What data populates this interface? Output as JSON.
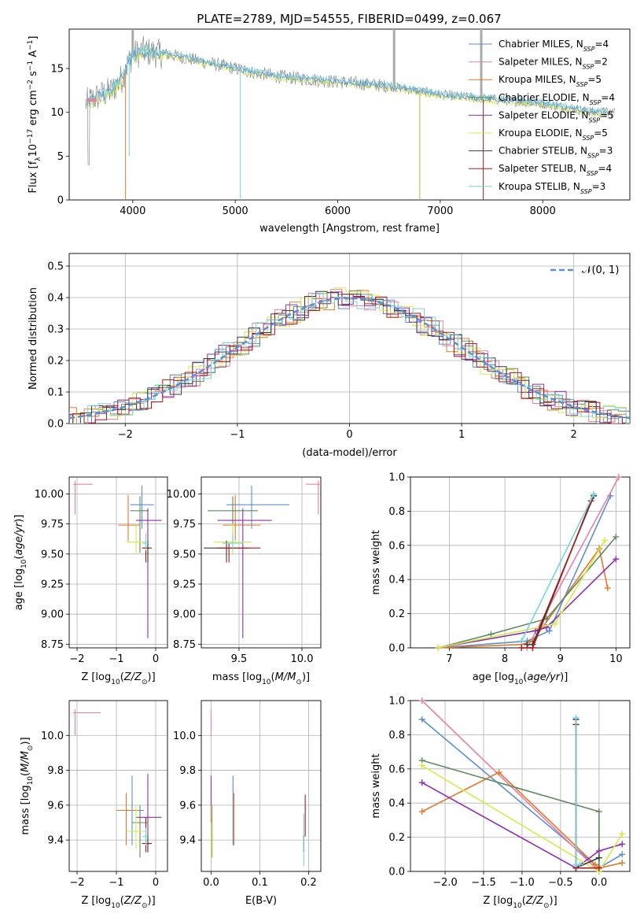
{
  "figure": {
    "title": "PLATE=2789, MJD=54555, FIBERID=0499, z=0.067"
  },
  "colors": {
    "Chabrier MILES": "#5b8fd4",
    "Salpeter MILES": "#e680a8",
    "Kroupa MILES": "#e2782a",
    "Chabrier ELODIE": "#5e8a60",
    "Salpeter ELODIE": "#8f2eb0",
    "Kroupa ELODIE": "#d6ea4a",
    "Chabrier STELIB": "#3a3a3a",
    "Salpeter STELIB": "#b01818",
    "Kroupa STELIB": "#74d3e0",
    "data": "#808080",
    "grid": "#b0b0b0"
  },
  "chart_data": [
    {
      "id": "spectrum",
      "type": "line",
      "title": "PLATE=2789, MJD=54555, FIBERID=0499, z=0.067",
      "xlabel": "wavelength [Angstrom, rest frame]",
      "ylabel": "Flux [f_λ 10^-17 erg cm^-2 s^-1 A^-1]",
      "xlim": [
        3380,
        8850
      ],
      "ylim": [
        0,
        19.5
      ],
      "xticks": [
        4000,
        5000,
        6000,
        7000,
        8000
      ],
      "yticks": [
        0,
        5,
        10,
        15
      ],
      "grid": false,
      "legend_position": "upper right",
      "legend": [
        {
          "name": "Chabrier MILES",
          "nssp": "4"
        },
        {
          "name": "Salpeter MILES",
          "nssp": "2"
        },
        {
          "name": "Kroupa MILES",
          "nssp": "5"
        },
        {
          "name": "Chabrier ELODIE",
          "nssp": "4"
        },
        {
          "name": "Salpeter ELODIE",
          "nssp": "5"
        },
        {
          "name": "Kroupa ELODIE",
          "nssp": "5"
        },
        {
          "name": "Chabrier STELIB",
          "nssp": "3"
        },
        {
          "name": "Salpeter STELIB",
          "nssp": "4"
        },
        {
          "name": "Kroupa STELIB",
          "nssp": "3"
        }
      ],
      "continuum": {
        "x": [
          3540,
          3600,
          3700,
          3800,
          3900,
          3950,
          4000,
          4100,
          4200,
          4400,
          4600,
          4800,
          5000,
          5200,
          5500,
          6000,
          6500,
          7000,
          7500,
          8000,
          8500
        ],
        "y": [
          11.0,
          11.5,
          12.0,
          12.5,
          14.0,
          15.5,
          16.5,
          17.0,
          16.8,
          16.5,
          16.0,
          15.5,
          15.0,
          14.5,
          14.0,
          13.5,
          13.0,
          12.0,
          11.5,
          11.0,
          10.0
        ]
      }
    },
    {
      "id": "residuals",
      "type": "histogram",
      "xlabel": "(data-model)/error",
      "ylabel": "Normed distribution",
      "xlim": [
        -2.5,
        2.5
      ],
      "ylim": [
        0,
        0.54
      ],
      "xticks": [
        -2,
        -1,
        0,
        1,
        2
      ],
      "yticks": [
        0.0,
        0.1,
        0.2,
        0.3,
        0.4,
        0.5
      ],
      "grid": true,
      "legend_position": "upper right",
      "reference_curve": {
        "name": "𝒩(0, 1)",
        "mean": 0,
        "sigma": 1,
        "style": "dashed"
      },
      "bin_width": 0.1
    },
    {
      "id": "age-vs-Z",
      "type": "errorbar",
      "xlabel": "Z [log10(Z/Z⊙)]",
      "ylabel": "age  [log10(age/yr)]",
      "xlim": [
        -2.2,
        0.3
      ],
      "ylim": [
        8.72,
        10.14
      ],
      "xticks": [
        -2,
        -1,
        0
      ],
      "yticks": [
        8.75,
        9.0,
        9.25,
        9.5,
        9.75,
        10.0
      ],
      "grid": true,
      "series": [
        {
          "name": "Chabrier MILES",
          "x": -0.35,
          "y": 9.91,
          "xerr": [
            0.3,
            0.3
          ],
          "yerr": [
            0.2,
            0.16
          ]
        },
        {
          "name": "Salpeter MILES",
          "x": -2.05,
          "y": 10.08,
          "xerr": [
            0.05,
            0.45
          ],
          "yerr": [
            0.25,
            0.03
          ]
        },
        {
          "name": "Kroupa MILES",
          "x": -0.7,
          "y": 9.74,
          "xerr": [
            0.25,
            0.3
          ],
          "yerr": [
            0.13,
            0.25
          ]
        },
        {
          "name": "Chabrier ELODIE",
          "x": -0.4,
          "y": 9.86,
          "xerr": [
            0.25,
            0.22
          ],
          "yerr": [
            0.35,
            0.12
          ]
        },
        {
          "name": "Salpeter ELODIE",
          "x": -0.2,
          "y": 9.78,
          "xerr": [
            0.3,
            0.35
          ],
          "yerr": [
            0.98,
            0.1
          ]
        },
        {
          "name": "Kroupa ELODIE",
          "x": -0.5,
          "y": 9.6,
          "xerr": [
            0.25,
            0.25
          ],
          "yerr": [
            0.1,
            0.15
          ]
        },
        {
          "name": "Chabrier STELIB",
          "x": -0.2,
          "y": 9.55,
          "xerr": [
            0.1,
            0.1
          ],
          "yerr": [
            0.12,
            0.06
          ]
        },
        {
          "name": "Salpeter STELIB",
          "x": -0.25,
          "y": 9.55,
          "xerr": [
            0.1,
            0.1
          ],
          "yerr": [
            0.12,
            0.04
          ]
        },
        {
          "name": "Kroupa STELIB",
          "x": -0.25,
          "y": 9.59,
          "xerr": [
            0.08,
            0.08
          ],
          "yerr": [
            0.06,
            0.08
          ]
        }
      ]
    },
    {
      "id": "age-vs-mass",
      "type": "errorbar",
      "xlabel": "mass [log10(M/M⊙)]",
      "ylabel": "",
      "xlim": [
        9.2,
        10.15
      ],
      "ylim": [
        8.72,
        10.14
      ],
      "xticks": [
        9.5,
        10.0
      ],
      "yticks": [
        8.75,
        9.0,
        9.25,
        9.5,
        9.75,
        10.0
      ],
      "grid": true,
      "series": [
        {
          "name": "Chabrier MILES",
          "x": 9.6,
          "y": 9.91,
          "xerr": [
            0.2,
            0.3
          ],
          "yerr": [
            0.2,
            0.16
          ]
        },
        {
          "name": "Salpeter MILES",
          "x": 10.13,
          "y": 10.08,
          "xerr": [
            0.1,
            0.02
          ],
          "yerr": [
            0.25,
            0.03
          ]
        },
        {
          "name": "Kroupa MILES",
          "x": 9.47,
          "y": 9.74,
          "xerr": [
            0.1,
            0.2
          ],
          "yerr": [
            0.13,
            0.25
          ]
        },
        {
          "name": "Chabrier ELODIE",
          "x": 9.45,
          "y": 9.86,
          "xerr": [
            0.2,
            0.2
          ],
          "yerr": [
            0.35,
            0.12
          ]
        },
        {
          "name": "Salpeter ELODIE",
          "x": 9.53,
          "y": 9.78,
          "xerr": [
            0.2,
            0.23
          ],
          "yerr": [
            0.98,
            0.1
          ]
        },
        {
          "name": "Kroupa ELODIE",
          "x": 9.45,
          "y": 9.6,
          "xerr": [
            0.15,
            0.15
          ],
          "yerr": [
            0.1,
            0.15
          ]
        },
        {
          "name": "Chabrier STELIB",
          "x": 9.4,
          "y": 9.55,
          "xerr": [
            0.18,
            0.18
          ],
          "yerr": [
            0.12,
            0.06
          ]
        },
        {
          "name": "Salpeter STELIB",
          "x": 9.42,
          "y": 9.55,
          "xerr": [
            0.1,
            0.25
          ],
          "yerr": [
            0.12,
            0.04
          ]
        },
        {
          "name": "Kroupa STELIB",
          "x": 9.45,
          "y": 9.59,
          "xerr": [
            0.08,
            0.08
          ],
          "yerr": [
            0.06,
            0.08
          ]
        }
      ]
    },
    {
      "id": "massweight-vs-age",
      "type": "line",
      "xlabel": "age  [log10(age/yr)]",
      "ylabel": "mass weight",
      "xlim": [
        6.3,
        10.25
      ],
      "ylim": [
        0,
        1.0
      ],
      "xticks": [
        7,
        8,
        9,
        10
      ],
      "yticks": [
        0.0,
        0.2,
        0.4,
        0.6,
        0.8,
        1.0
      ],
      "grid": true,
      "series": [
        {
          "name": "Chabrier MILES",
          "x": [
            6.8,
            8.4,
            8.8,
            9.9
          ],
          "y": [
            0.0,
            0.04,
            0.1,
            0.89
          ]
        },
        {
          "name": "Salpeter MILES",
          "x": [
            8.4,
            10.05
          ],
          "y": [
            0.0,
            1.0
          ]
        },
        {
          "name": "Kroupa MILES",
          "x": [
            6.8,
            8.3,
            8.5,
            9.7,
            9.85
          ],
          "y": [
            0.0,
            0.02,
            0.04,
            0.58,
            0.35
          ]
        },
        {
          "name": "Chabrier ELODIE",
          "x": [
            6.8,
            7.75,
            8.75,
            10.0
          ],
          "y": [
            0.0,
            0.08,
            0.17,
            0.65
          ]
        },
        {
          "name": "Salpeter ELODIE",
          "x": [
            6.8,
            8.55,
            8.75,
            10.0
          ],
          "y": [
            0.0,
            0.1,
            0.12,
            0.52
          ]
        },
        {
          "name": "Kroupa ELODIE",
          "x": [
            6.8,
            8.9,
            9.8
          ],
          "y": [
            0.0,
            0.14,
            0.63
          ]
        },
        {
          "name": "Chabrier STELIB",
          "x": [
            8.4,
            8.5,
            9.6
          ],
          "y": [
            0.02,
            0.02,
            0.89
          ]
        },
        {
          "name": "Salpeter STELIB",
          "x": [
            8.3,
            8.5,
            9.55
          ],
          "y": [
            0.0,
            0.0,
            0.86
          ]
        },
        {
          "name": "Kroupa STELIB",
          "x": [
            8.3,
            9.6
          ],
          "y": [
            0.04,
            0.9
          ]
        }
      ]
    },
    {
      "id": "mass-vs-Z",
      "type": "errorbar",
      "xlabel": "Z [log10(Z/Z⊙)]",
      "ylabel": "mass [log10(M/M⊙)]",
      "xlim": [
        -2.2,
        0.3
      ],
      "ylim": [
        9.22,
        10.2
      ],
      "xticks": [
        -2,
        -1,
        0
      ],
      "yticks": [
        9.4,
        9.6,
        9.8,
        10.0
      ],
      "grid": true,
      "series": [
        {
          "name": "Chabrier MILES",
          "x": -0.6,
          "y": 9.57,
          "xerr": [
            0.3,
            0.3
          ],
          "yerr": [
            0.2,
            0.2
          ]
        },
        {
          "name": "Salpeter MILES",
          "x": -2.05,
          "y": 10.13,
          "xerr": [
            0.05,
            0.65
          ],
          "yerr": [
            0.13,
            0.02
          ]
        },
        {
          "name": "Kroupa MILES",
          "x": -0.75,
          "y": 9.57,
          "xerr": [
            0.25,
            0.3
          ],
          "yerr": [
            0.2,
            0.1
          ]
        },
        {
          "name": "Chabrier ELODIE",
          "x": -0.4,
          "y": 9.5,
          "xerr": [
            0.2,
            0.2
          ],
          "yerr": [
            0.2,
            0.1
          ]
        },
        {
          "name": "Salpeter ELODIE",
          "x": -0.2,
          "y": 9.53,
          "xerr": [
            0.3,
            0.35
          ],
          "yerr": [
            0.2,
            0.25
          ]
        },
        {
          "name": "Kroupa ELODIE",
          "x": -0.5,
          "y": 9.45,
          "xerr": [
            0.25,
            0.25
          ],
          "yerr": [
            0.1,
            0.15
          ]
        },
        {
          "name": "Chabrier STELIB",
          "x": -0.2,
          "y": 9.38,
          "xerr": [
            0.1,
            0.1
          ],
          "yerr": [
            0.05,
            0.05
          ]
        },
        {
          "name": "Salpeter STELIB",
          "x": -0.25,
          "y": 9.38,
          "xerr": [
            0.1,
            0.1
          ],
          "yerr": [
            0.05,
            0.15
          ]
        },
        {
          "name": "Kroupa STELIB",
          "x": -0.25,
          "y": 9.42,
          "xerr": [
            0.08,
            0.08
          ],
          "yerr": [
            0.05,
            0.05
          ]
        }
      ]
    },
    {
      "id": "mass-vs-EBV",
      "type": "errorbar",
      "xlabel": "E(B-V)",
      "ylabel": "",
      "xlim": [
        -0.02,
        0.225
      ],
      "ylim": [
        9.22,
        10.2
      ],
      "xticks": [
        0.0,
        0.1,
        0.2
      ],
      "yticks": [
        9.4,
        9.6,
        9.8,
        10.0
      ],
      "grid": true,
      "series": [
        {
          "name": "Chabrier MILES",
          "x": 0.045,
          "y": 9.57,
          "xerr": [
            0,
            0
          ],
          "yerr": [
            0.2,
            0.2
          ]
        },
        {
          "name": "Salpeter MILES",
          "x": 0.0,
          "y": 10.13,
          "xerr": [
            0,
            0
          ],
          "yerr": [
            0.13,
            0.02
          ]
        },
        {
          "name": "Kroupa MILES",
          "x": 0.047,
          "y": 9.57,
          "xerr": [
            0,
            0
          ],
          "yerr": [
            0.2,
            0.1
          ]
        },
        {
          "name": "Chabrier ELODIE",
          "x": 0.002,
          "y": 9.5,
          "xerr": [
            0,
            0
          ],
          "yerr": [
            0.2,
            0.1
          ]
        },
        {
          "name": "Salpeter ELODIE",
          "x": 0.0,
          "y": 9.6,
          "xerr": [
            0,
            0
          ],
          "yerr": [
            0.1,
            0.17
          ]
        },
        {
          "name": "Kroupa ELODIE",
          "x": 0.001,
          "y": 9.45,
          "xerr": [
            0,
            0
          ],
          "yerr": [
            0.15,
            0.15
          ]
        },
        {
          "name": "Chabrier STELIB",
          "x": 0.19,
          "y": 9.38,
          "xerr": [
            0,
            0
          ],
          "yerr": [
            0.05,
            0.05
          ]
        },
        {
          "name": "Salpeter STELIB",
          "x": 0.193,
          "y": 9.52,
          "xerr": [
            0,
            0
          ],
          "yerr": [
            0.1,
            0.14
          ]
        },
        {
          "name": "Kroupa STELIB",
          "x": 0.19,
          "y": 9.4,
          "xerr": [
            0,
            0
          ],
          "yerr": [
            0.15,
            0.15
          ]
        }
      ]
    },
    {
      "id": "massweight-vs-Z",
      "type": "line",
      "xlabel": "Z [log10(Z/Z⊙)]",
      "ylabel": "mass weight",
      "xlim": [
        -2.45,
        0.4
      ],
      "ylim": [
        0,
        1.0
      ],
      "xticks": [
        -2.0,
        -1.5,
        -1.0,
        -0.5,
        0.0
      ],
      "yticks": [
        0.0,
        0.2,
        0.4,
        0.6,
        0.8,
        1.0
      ],
      "grid": true,
      "series": [
        {
          "name": "Chabrier MILES",
          "x": [
            -2.3,
            0.0,
            0.3
          ],
          "y": [
            0.89,
            0.02,
            0.1
          ]
        },
        {
          "name": "Salpeter MILES",
          "x": [
            -2.3,
            0.0
          ],
          "y": [
            1.0,
            0.0
          ]
        },
        {
          "name": "Kroupa MILES",
          "x": [
            -2.3,
            -1.3,
            -0.05,
            0.0,
            0.3
          ],
          "y": [
            0.35,
            0.58,
            0.04,
            0.02,
            0.05
          ]
        },
        {
          "name": "Chabrier ELODIE",
          "x": [
            -2.3,
            0.0,
            0.0
          ],
          "y": [
            0.65,
            0.35,
            0.0
          ]
        },
        {
          "name": "Salpeter ELODIE",
          "x": [
            -2.3,
            -0.3,
            0.0,
            0.3
          ],
          "y": [
            0.52,
            0.02,
            0.12,
            0.16
          ]
        },
        {
          "name": "Kroupa ELODIE",
          "x": [
            -2.3,
            0.0,
            0.3
          ],
          "y": [
            0.62,
            0.0,
            0.22
          ]
        },
        {
          "name": "Chabrier STELIB",
          "x": [
            -0.3,
            -0.3,
            0.0
          ],
          "y": [
            0.89,
            0.02,
            0.08
          ]
        },
        {
          "name": "Salpeter STELIB",
          "x": [
            -0.3,
            -0.3,
            0.0
          ],
          "y": [
            0.86,
            0.02,
            0.02
          ]
        },
        {
          "name": "Kroupa STELIB",
          "x": [
            -0.3,
            -0.3,
            -0.25
          ],
          "y": [
            0.9,
            0.04,
            0.04
          ]
        }
      ]
    }
  ]
}
